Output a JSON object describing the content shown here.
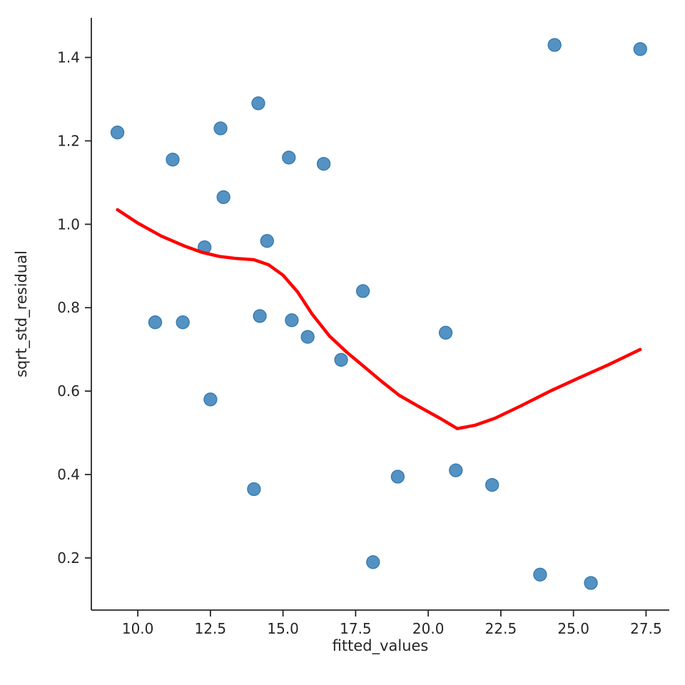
{
  "chart_data": {
    "type": "scatter",
    "xlabel": "fitted_values",
    "ylabel": "sqrt_std_residual",
    "xlim": [
      8.4,
      28.3
    ],
    "ylim": [
      0.075,
      1.495
    ],
    "x_ticks": [
      10.0,
      12.5,
      15.0,
      17.5,
      20.0,
      22.5,
      25.0,
      27.5
    ],
    "x_tick_labels": [
      "10.0",
      "12.5",
      "15.0",
      "17.5",
      "20.0",
      "22.5",
      "25.0",
      "27.5"
    ],
    "y_ticks": [
      0.2,
      0.4,
      0.6,
      0.8,
      1.0,
      1.2,
      1.4
    ],
    "y_tick_labels": [
      "0.2",
      "0.4",
      "0.6",
      "0.8",
      "1.0",
      "1.2",
      "1.4"
    ],
    "grid": false,
    "legend": null,
    "axis_color": "#262626",
    "tick_label_color": "#262626",
    "series": [
      {
        "name": "residual_points",
        "type": "scatter",
        "color": "#5392C3",
        "edge_color": "#3579AE",
        "marker_size": 9,
        "points": [
          [
            9.3,
            1.22
          ],
          [
            10.6,
            0.765
          ],
          [
            11.2,
            1.155
          ],
          [
            11.55,
            0.765
          ],
          [
            12.3,
            0.945
          ],
          [
            12.5,
            0.58
          ],
          [
            12.85,
            1.23
          ],
          [
            12.95,
            1.065
          ],
          [
            14.0,
            0.365
          ],
          [
            14.15,
            1.29
          ],
          [
            14.2,
            0.78
          ],
          [
            14.45,
            0.96
          ],
          [
            15.2,
            1.16
          ],
          [
            15.3,
            0.77
          ],
          [
            15.85,
            0.73
          ],
          [
            16.4,
            1.145
          ],
          [
            17.0,
            0.675
          ],
          [
            17.75,
            0.84
          ],
          [
            18.1,
            0.19
          ],
          [
            18.95,
            0.395
          ],
          [
            20.6,
            0.74
          ],
          [
            20.95,
            0.41
          ],
          [
            22.2,
            0.375
          ],
          [
            23.85,
            0.16
          ],
          [
            24.35,
            1.43
          ],
          [
            25.6,
            0.14
          ],
          [
            27.3,
            1.42
          ]
        ]
      },
      {
        "name": "lowess_smoother",
        "type": "line",
        "color": "#FF0000",
        "line_width": 4.5,
        "points": [
          [
            9.3,
            1.035
          ],
          [
            10.0,
            1.003
          ],
          [
            10.8,
            0.972
          ],
          [
            11.6,
            0.948
          ],
          [
            12.2,
            0.933
          ],
          [
            12.8,
            0.923
          ],
          [
            13.4,
            0.918
          ],
          [
            14.0,
            0.915
          ],
          [
            14.5,
            0.903
          ],
          [
            15.0,
            0.878
          ],
          [
            15.5,
            0.838
          ],
          [
            16.0,
            0.785
          ],
          [
            16.6,
            0.732
          ],
          [
            17.2,
            0.693
          ],
          [
            17.8,
            0.658
          ],
          [
            18.4,
            0.623
          ],
          [
            19.0,
            0.59
          ],
          [
            19.7,
            0.562
          ],
          [
            20.4,
            0.535
          ],
          [
            21.0,
            0.51
          ],
          [
            21.6,
            0.518
          ],
          [
            22.3,
            0.535
          ],
          [
            23.2,
            0.565
          ],
          [
            24.2,
            0.6
          ],
          [
            25.2,
            0.632
          ],
          [
            26.2,
            0.663
          ],
          [
            27.3,
            0.7
          ]
        ]
      }
    ]
  }
}
